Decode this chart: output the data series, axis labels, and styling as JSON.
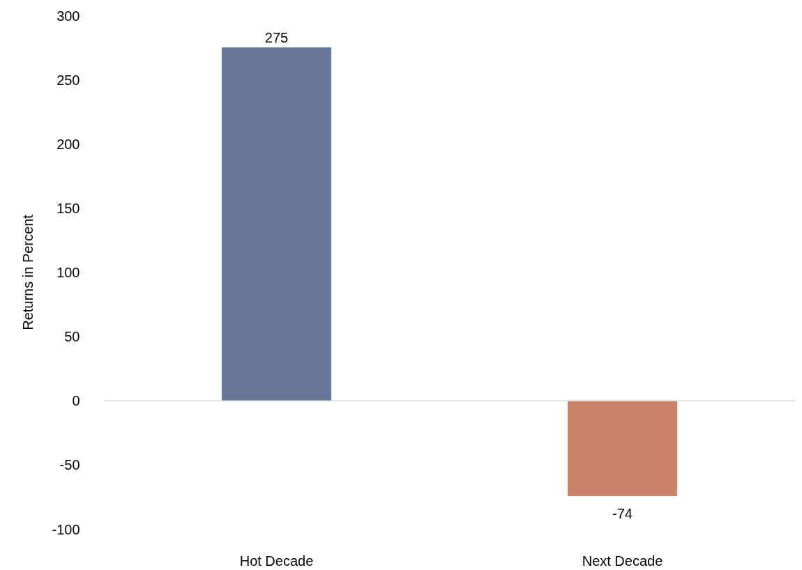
{
  "chart_data": {
    "type": "bar",
    "ylabel": "Returns in Percent",
    "categories": [
      "Hot Decade",
      "Next Decade"
    ],
    "values": [
      275,
      -74
    ],
    "colors": [
      "#687798",
      "#c9836a"
    ],
    "ylim": [
      -100,
      300
    ],
    "yticks": [
      -100,
      -50,
      0,
      50,
      100,
      150,
      200,
      250,
      300
    ],
    "data_labels": true
  }
}
